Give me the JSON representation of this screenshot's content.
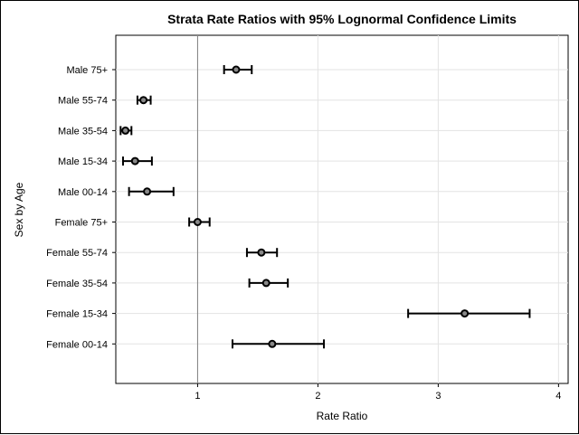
{
  "chart_data": {
    "type": "scatter",
    "title": "Strata Rate Ratios with 95% Lognormal Confidence Limits",
    "xlabel": "Rate Ratio",
    "ylabel": "Sex by Age",
    "xlim": [
      0.32,
      4.08
    ],
    "xticks": [
      "1",
      "2",
      "3",
      "4"
    ],
    "reference_line_x": 1,
    "grid": true,
    "categories": [
      "Male 75+",
      "Male 55-74",
      "Male 35-54",
      "Male 15-34",
      "Male 00-14",
      "Female 75+",
      "Female 55-74",
      "Female 35-54",
      "Female 15-34",
      "Female 00-14"
    ],
    "estimates": [
      1.32,
      0.55,
      0.4,
      0.48,
      0.58,
      1.0,
      1.53,
      1.57,
      3.22,
      1.62
    ],
    "lower": [
      1.22,
      0.5,
      0.36,
      0.38,
      0.43,
      0.93,
      1.41,
      1.43,
      2.75,
      1.29
    ],
    "upper": [
      1.45,
      0.61,
      0.45,
      0.62,
      0.8,
      1.1,
      1.66,
      1.75,
      3.76,
      2.05
    ]
  }
}
